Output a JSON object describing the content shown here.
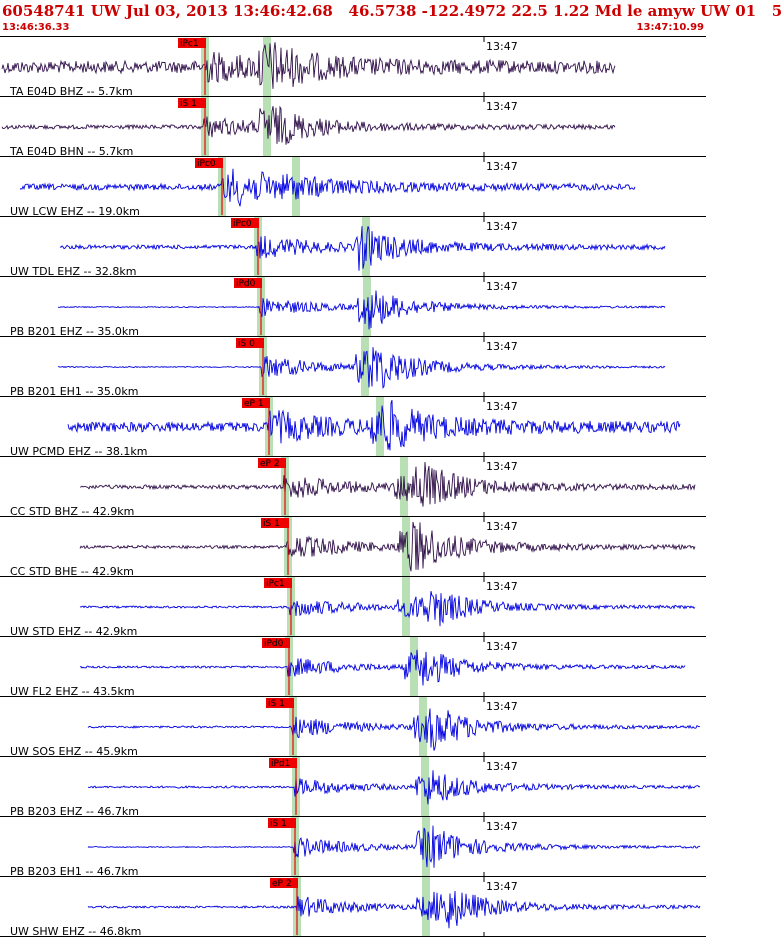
{
  "header": {
    "title": "60548741 UW Jul 03, 2013 13:46:42.68   46.5738 -122.4972 22.5 1.22 Md le amyw UW 01   5",
    "time_start": "13:46:36.33",
    "time_end": "13:47:10.99"
  },
  "colors": {
    "header_text": "#cc0000",
    "trace_blue": "#0000e0",
    "trace_dark": "#30104a",
    "pick_box": "#ee0000",
    "pick_window": "#b9e0b4",
    "gridline": "#000000"
  },
  "chart_data": {
    "type": "line",
    "title": "60548741 UW Jul 03, 2013 13:46:42.68   46.5738 -122.4972 22.5 1.22 Md le amyw UW 01   5",
    "x_range": [
      "13:46:36.33",
      "13:47:10.99"
    ],
    "minute_mark": "13:47",
    "traces": [
      {
        "label": "TA E04D BHZ -- 5.7km",
        "pick": "iPc1",
        "color": "dark"
      },
      {
        "label": "TA E04D BHN -- 5.7km",
        "pick": "iS 1",
        "color": "dark"
      },
      {
        "label": "UW LCW EHZ -- 19.0km",
        "pick": "iPc0",
        "color": "blue"
      },
      {
        "label": "UW TDL EHZ -- 32.8km",
        "pick": "iPc0",
        "color": "blue"
      },
      {
        "label": "PB B201 EHZ -- 35.0km",
        "pick": "iPd0",
        "color": "blue"
      },
      {
        "label": "PB B201 EH1 -- 35.0km",
        "pick": "iS 0",
        "color": "blue"
      },
      {
        "label": "UW PCMD EHZ -- 38.1km",
        "pick": "eP 1",
        "color": "blue"
      },
      {
        "label": "CC STD BHZ -- 42.9km",
        "pick": "eP 2",
        "color": "dark"
      },
      {
        "label": "CC STD BHE -- 42.9km",
        "pick": "iS 1",
        "color": "dark"
      },
      {
        "label": "UW STD EHZ -- 42.9km",
        "pick": "iPc1",
        "color": "blue"
      },
      {
        "label": "UW FL2 EHZ -- 43.5km",
        "pick": "iPd0",
        "color": "blue"
      },
      {
        "label": "UW SOS EHZ -- 45.9km",
        "pick": "iS 1",
        "color": "blue"
      },
      {
        "label": "PB B203 EHZ -- 46.7km",
        "pick": "iPd1",
        "color": "blue"
      },
      {
        "label": "PB B203 EH1 -- 46.7km",
        "pick": "iS 1",
        "color": "blue"
      },
      {
        "label": "UW SHW EHZ -- 46.8km",
        "pick": "eP 2",
        "color": "blue"
      }
    ]
  }
}
